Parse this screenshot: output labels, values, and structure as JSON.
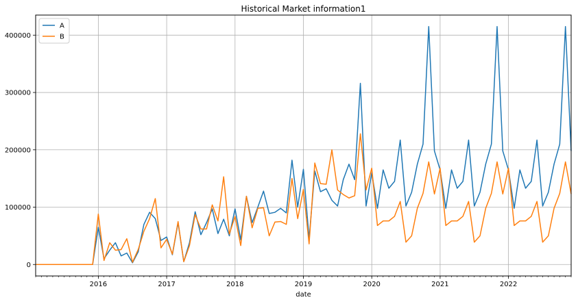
{
  "chart_data": {
    "type": "line",
    "title": "Historical Market information1",
    "xlabel": "date",
    "ylabel": "",
    "x": [
      "2015-02",
      "2015-03",
      "2015-04",
      "2015-05",
      "2015-06",
      "2015-07",
      "2015-08",
      "2015-09",
      "2015-10",
      "2015-11",
      "2015-12",
      "2016-01",
      "2016-02",
      "2016-03",
      "2016-04",
      "2016-05",
      "2016-06",
      "2016-07",
      "2016-08",
      "2016-09",
      "2016-10",
      "2016-11",
      "2016-12",
      "2017-01",
      "2017-02",
      "2017-03",
      "2017-04",
      "2017-05",
      "2017-06",
      "2017-07",
      "2017-08",
      "2017-09",
      "2017-10",
      "2017-11",
      "2017-12",
      "2018-01",
      "2018-02",
      "2018-03",
      "2018-04",
      "2018-05",
      "2018-06",
      "2018-07",
      "2018-08",
      "2018-09",
      "2018-10",
      "2018-11",
      "2018-12",
      "2019-01",
      "2019-02",
      "2019-03",
      "2019-04",
      "2019-05",
      "2019-06",
      "2019-07",
      "2019-08",
      "2019-09",
      "2019-10",
      "2019-11",
      "2019-12",
      "2020-01",
      "2020-02",
      "2020-03",
      "2020-04",
      "2020-05",
      "2020-06",
      "2020-07",
      "2020-08",
      "2020-09",
      "2020-10",
      "2020-11",
      "2020-12",
      "2021-01",
      "2021-02",
      "2021-03",
      "2021-04",
      "2021-05",
      "2021-06",
      "2021-07",
      "2021-08",
      "2021-09",
      "2021-10",
      "2021-11",
      "2021-12",
      "2022-01",
      "2022-02",
      "2022-03",
      "2022-04",
      "2022-05",
      "2022-06",
      "2022-07",
      "2022-08",
      "2022-09",
      "2022-10",
      "2022-11",
      "2022-12"
    ],
    "series": [
      {
        "name": "A",
        "color": "#1f77b4",
        "values": [
          0,
          0,
          0,
          0,
          0,
          0,
          0,
          0,
          0,
          0,
          0,
          65000,
          10000,
          25000,
          38000,
          15000,
          20000,
          3000,
          22000,
          70000,
          91000,
          80000,
          42000,
          48000,
          17000,
          73000,
          5000,
          38000,
          92000,
          52000,
          73000,
          97000,
          54000,
          79000,
          50000,
          97000,
          43000,
          119000,
          73000,
          100000,
          128000,
          89000,
          91000,
          98000,
          90000,
          182000,
          100000,
          166000,
          45000,
          163000,
          127000,
          132000,
          112000,
          102000,
          148000,
          175000,
          148000,
          316000,
          102000,
          160000,
          98000,
          165000,
          133000,
          145000,
          217000,
          102000,
          126000,
          175000,
          210000,
          415000,
          198000,
          165000,
          98000,
          165000,
          133000,
          145000,
          217000,
          102000,
          126000,
          175000,
          210000,
          415000,
          198000,
          165000,
          98000,
          165000,
          133000,
          145000,
          217000,
          102000,
          126000,
          175000,
          210000,
          415000,
          198000
        ]
      },
      {
        "name": "B",
        "color": "#ff7f0e",
        "values": [
          0,
          0,
          0,
          0,
          0,
          0,
          0,
          0,
          0,
          0,
          0,
          88000,
          7000,
          38000,
          25000,
          26000,
          45000,
          4000,
          26000,
          58000,
          80000,
          115000,
          29000,
          44000,
          18000,
          75000,
          5000,
          33000,
          87000,
          62000,
          62000,
          104000,
          76000,
          153000,
          53000,
          84000,
          33000,
          119000,
          64000,
          98000,
          99000,
          50000,
          74000,
          75000,
          70000,
          150000,
          80000,
          131000,
          36000,
          177000,
          141000,
          140000,
          200000,
          130000,
          122000,
          116000,
          120000,
          228000,
          130000,
          168000,
          68000,
          76000,
          76000,
          84000,
          110000,
          39000,
          50000,
          98000,
          124000,
          179000,
          123000,
          168000,
          68000,
          76000,
          76000,
          84000,
          110000,
          39000,
          50000,
          98000,
          124000,
          179000,
          123000,
          168000,
          68000,
          76000,
          76000,
          84000,
          110000,
          39000,
          50000,
          98000,
          124000,
          179000,
          123000
        ]
      }
    ],
    "ylim": [
      -20000,
      435000
    ],
    "yticks": [
      0,
      100000,
      200000,
      300000,
      400000
    ],
    "ytick_labels": [
      "0",
      "100000",
      "200000",
      "300000",
      "400000"
    ],
    "xticks": [
      "2016-01",
      "2017-01",
      "2018-01",
      "2019-01",
      "2020-01",
      "2021-01",
      "2022-01"
    ],
    "xtick_labels": [
      "2016",
      "2017",
      "2018",
      "2019",
      "2020",
      "2021",
      "2022"
    ],
    "grid": true,
    "legend": "top-left"
  }
}
